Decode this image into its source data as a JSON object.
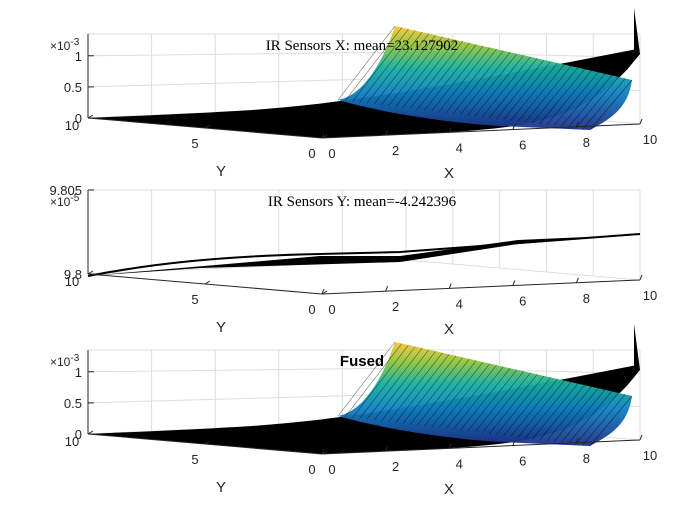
{
  "chart_data": [
    {
      "type": "surface",
      "title": "IR Sensors X: mean=23.127902",
      "title_style": "serif",
      "xlabel": "X",
      "ylabel": "Y",
      "x_ticks": [
        "0",
        "2",
        "4",
        "6",
        "8",
        "10"
      ],
      "y_ticks": [
        "0",
        "5",
        "10"
      ],
      "z_ticks": [
        "0",
        "0.5",
        "1"
      ],
      "z_exponent": "-3",
      "xlim": [
        0,
        10
      ],
      "ylim": [
        0,
        10
      ],
      "zlim": [
        0,
        0.00135
      ],
      "z_corner_values": {
        "x0": 0.0,
        "x_max": 0.00105
      },
      "colormap": "parula",
      "grid": true
    },
    {
      "type": "surface",
      "title": "IR Sensors Y: mean=-4.242396",
      "title_style": "serif",
      "xlabel": "X",
      "ylabel": "Y",
      "x_ticks": [
        "0",
        "2",
        "4",
        "6",
        "8",
        "10"
      ],
      "y_ticks": [
        "0",
        "5",
        "10"
      ],
      "z_ticks": [
        "9.8",
        "9.805"
      ],
      "z_exponent": "-5",
      "xlim": [
        0,
        10
      ],
      "ylim": [
        0,
        10
      ],
      "zlim": [
        9.8,
        9.805
      ],
      "z_corner_values": {
        "x0": 9.8,
        "x_max": 9.805
      },
      "colormap": "black",
      "grid": true
    },
    {
      "type": "surface",
      "title": "Fused",
      "title_style": "bold",
      "xlabel": "X",
      "ylabel": "Y",
      "x_ticks": [
        "0",
        "2",
        "4",
        "6",
        "8",
        "10"
      ],
      "y_ticks": [
        "0",
        "5",
        "10"
      ],
      "z_ticks": [
        "0",
        "0.5",
        "1"
      ],
      "z_exponent": "-3",
      "xlim": [
        0,
        10
      ],
      "ylim": [
        0,
        10
      ],
      "zlim": [
        0,
        0.00135
      ],
      "z_corner_values": {
        "x0": 0.0,
        "x_max": 0.00105
      },
      "colormap": "parula",
      "grid": true
    }
  ]
}
